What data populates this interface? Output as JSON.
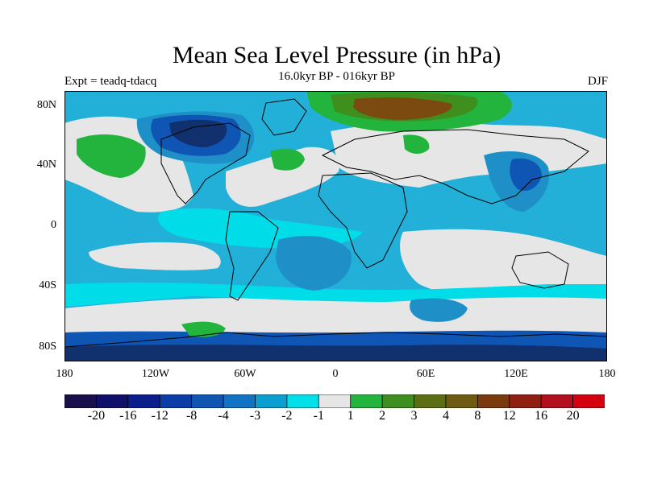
{
  "title": "Mean Sea Level Pressure (in hPa)",
  "subtitle": "16.0kyr BP - 016kyr BP",
  "experiment_label": "Expt = teadq-tdacq",
  "season_label": "DJF",
  "lat_labels": [
    "80N",
    "40N",
    "0",
    "40S",
    "80S"
  ],
  "lon_labels": [
    "180",
    "120W",
    "60W",
    "0",
    "60E",
    "120E",
    "180"
  ],
  "colorbar": {
    "colors": [
      "#1a0f4d",
      "#10106b",
      "#0a1e8c",
      "#0c3ca6",
      "#0f55b4",
      "#1272c4",
      "#0a9fd0",
      "#00e0e8",
      "#e6e6e6",
      "#22b43c",
      "#3f8f1f",
      "#5b6f12",
      "#6e5a10",
      "#7a3a0e",
      "#8f1f10",
      "#b2101e",
      "#d4000e"
    ],
    "labels": [
      "-20",
      "-16",
      "-12",
      "-8",
      "-4",
      "-3",
      "-2",
      "-1",
      "1",
      "2",
      "3",
      "4",
      "8",
      "12",
      "16",
      "20"
    ]
  },
  "field_colors": {
    "deep_blue": "#10306e",
    "blue": "#0f55b4",
    "mid_blue": "#1f8fc8",
    "light_blue": "#22b0d8",
    "cyan": "#00dce8",
    "grey": "#e6e6e6",
    "green": "#22b43c",
    "dark_green": "#3f8f1f",
    "brown": "#7a4a10"
  }
}
